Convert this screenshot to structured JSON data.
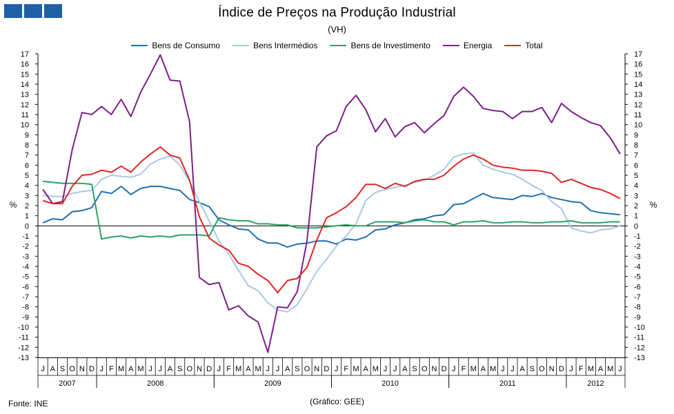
{
  "colors": {
    "bens_consumo": "#1f6fb0",
    "bens_intermedios": "#a9c8e6",
    "bens_investimento": "#2ca25f",
    "energia": "#7a1f86",
    "total": "#e02424",
    "logo": "#1f5fa6"
  },
  "header": {
    "title": "Índice de Preços na Produção Industrial",
    "subtitle": "(VH)"
  },
  "footer": {
    "source": "Fonte: INE",
    "credit": "(Gráfico: GEE)"
  },
  "chart_data": {
    "type": "line",
    "title": "Índice de Preços na Produção Industrial",
    "subtitle": "(VH)",
    "ylabel_left": "%",
    "ylabel_right": "%",
    "ylim": [
      -13,
      17
    ],
    "yticks": [
      -13,
      -12,
      -11,
      -10,
      -9,
      -8,
      -7,
      -6,
      -5,
      -4,
      -3,
      -2,
      -1,
      0,
      1,
      2,
      3,
      4,
      5,
      6,
      7,
      8,
      9,
      10,
      11,
      12,
      13,
      14,
      15,
      16,
      17
    ],
    "grid": false,
    "legend_position": "top",
    "month_labels": [
      "J",
      "A",
      "S",
      "O",
      "N",
      "D",
      "J",
      "F",
      "M",
      "A",
      "M",
      "J",
      "J",
      "A",
      "S",
      "O",
      "N",
      "D",
      "J",
      "F",
      "M",
      "A",
      "M",
      "J",
      "J",
      "A",
      "S",
      "O",
      "N",
      "D",
      "J",
      "F",
      "M",
      "A",
      "M",
      "J",
      "J",
      "A",
      "S",
      "O",
      "N",
      "D",
      "J",
      "F",
      "M",
      "A",
      "M",
      "J",
      "J",
      "A",
      "S",
      "O",
      "N",
      "D",
      "J",
      "F",
      "M",
      "A",
      "M",
      "J"
    ],
    "years": [
      {
        "label": "2007",
        "start": 0,
        "end": 6
      },
      {
        "label": "2008",
        "start": 6,
        "end": 18
      },
      {
        "label": "2009",
        "start": 18,
        "end": 30
      },
      {
        "label": "2010",
        "start": 30,
        "end": 42
      },
      {
        "label": "2011",
        "start": 42,
        "end": 54
      },
      {
        "label": "2012",
        "start": 54,
        "end": 60
      }
    ],
    "series": [
      {
        "name": "Bens de Consumo",
        "color_key": "bens_consumo",
        "values": [
          0.3,
          0.7,
          0.6,
          1.4,
          1.5,
          1.8,
          3.4,
          3.2,
          3.9,
          3.1,
          3.7,
          3.9,
          3.9,
          3.7,
          3.5,
          2.6,
          2.3,
          1.9,
          0.6,
          0.1,
          -0.3,
          -0.4,
          -1.3,
          -1.7,
          -1.7,
          -2.1,
          -1.8,
          -1.7,
          -1.5,
          -1.5,
          -1.8,
          -1.3,
          -1.4,
          -1.1,
          -0.4,
          -0.3,
          0.1,
          0.3,
          0.6,
          0.7,
          1.0,
          1.1,
          2.1,
          2.2,
          2.7,
          3.2,
          2.8,
          2.7,
          2.6,
          3.0,
          2.9,
          3.2,
          2.8,
          2.6,
          2.4,
          2.3,
          1.5,
          1.3,
          1.2,
          1.1
        ]
      },
      {
        "name": "Bens Intermédios",
        "color_key": "bens_intermedios",
        "values": [
          3.0,
          2.9,
          2.9,
          3.2,
          3.4,
          3.5,
          4.6,
          5.0,
          4.9,
          4.8,
          5.1,
          6.1,
          6.6,
          6.9,
          6.0,
          4.4,
          2.4,
          0.5,
          -1.5,
          -2.8,
          -4.4,
          -5.9,
          -6.4,
          -7.6,
          -8.3,
          -8.5,
          -7.8,
          -6.2,
          -4.5,
          -3.3,
          -2.0,
          -1.0,
          0.2,
          2.5,
          3.3,
          3.6,
          3.8,
          4.0,
          4.3,
          4.5,
          5.0,
          5.6,
          6.8,
          7.1,
          7.2,
          6.0,
          5.6,
          5.3,
          5.1,
          4.6,
          4.0,
          3.5,
          2.4,
          1.7,
          -0.2,
          -0.5,
          -0.7,
          -0.4,
          -0.3,
          0.0
        ]
      },
      {
        "name": "Bens de Investimento",
        "color_key": "bens_investimento",
        "values": [
          4.4,
          4.3,
          4.2,
          4.2,
          4.2,
          4.1,
          -1.3,
          -1.1,
          -1.0,
          -1.2,
          -1.0,
          -1.1,
          -1.0,
          -1.1,
          -0.9,
          -0.9,
          -0.9,
          -1.0,
          0.8,
          0.6,
          0.5,
          0.5,
          0.2,
          0.2,
          0.1,
          0.1,
          -0.2,
          -0.2,
          -0.2,
          -0.1,
          0.0,
          0.1,
          0.0,
          0.0,
          0.4,
          0.4,
          0.4,
          0.3,
          0.5,
          0.6,
          0.4,
          0.4,
          0.1,
          0.4,
          0.4,
          0.5,
          0.3,
          0.3,
          0.4,
          0.4,
          0.3,
          0.3,
          0.4,
          0.4,
          0.5,
          0.3,
          0.3,
          0.3,
          0.4,
          0.4
        ]
      },
      {
        "name": "Energia",
        "color_key": "energia",
        "values": [
          3.6,
          2.2,
          2.4,
          7.5,
          11.2,
          11.0,
          11.8,
          11.0,
          12.5,
          10.8,
          13.2,
          15.0,
          16.9,
          14.4,
          14.3,
          10.3,
          -5.1,
          -5.8,
          -5.6,
          -8.3,
          -7.9,
          -8.9,
          -9.5,
          -12.5,
          -8.0,
          -8.1,
          -6.5,
          -1.5,
          7.8,
          8.9,
          9.4,
          11.8,
          12.9,
          11.5,
          9.3,
          10.6,
          8.8,
          9.8,
          10.2,
          9.2,
          10.1,
          10.9,
          12.8,
          13.7,
          12.8,
          11.6,
          11.4,
          11.3,
          10.6,
          11.3,
          11.3,
          11.7,
          10.2,
          12.1,
          11.3,
          10.7,
          10.2,
          9.9,
          8.7,
          7.1
        ]
      },
      {
        "name": "Total",
        "color_key": "total",
        "values": [
          2.5,
          2.2,
          2.2,
          3.9,
          5.0,
          5.1,
          5.5,
          5.3,
          5.9,
          5.3,
          6.3,
          7.1,
          7.8,
          7.0,
          6.7,
          4.5,
          0.9,
          -1.2,
          -1.9,
          -2.4,
          -3.7,
          -4.0,
          -4.8,
          -5.4,
          -6.6,
          -5.4,
          -5.2,
          -4.1,
          -1.4,
          0.8,
          1.3,
          1.9,
          2.8,
          4.1,
          4.1,
          3.7,
          4.2,
          3.9,
          4.4,
          4.6,
          4.6,
          5.0,
          5.9,
          6.6,
          7.0,
          6.6,
          6.0,
          5.8,
          5.7,
          5.5,
          5.5,
          5.4,
          5.2,
          4.3,
          4.6,
          4.2,
          3.8,
          3.6,
          3.2,
          2.7
        ]
      }
    ]
  }
}
